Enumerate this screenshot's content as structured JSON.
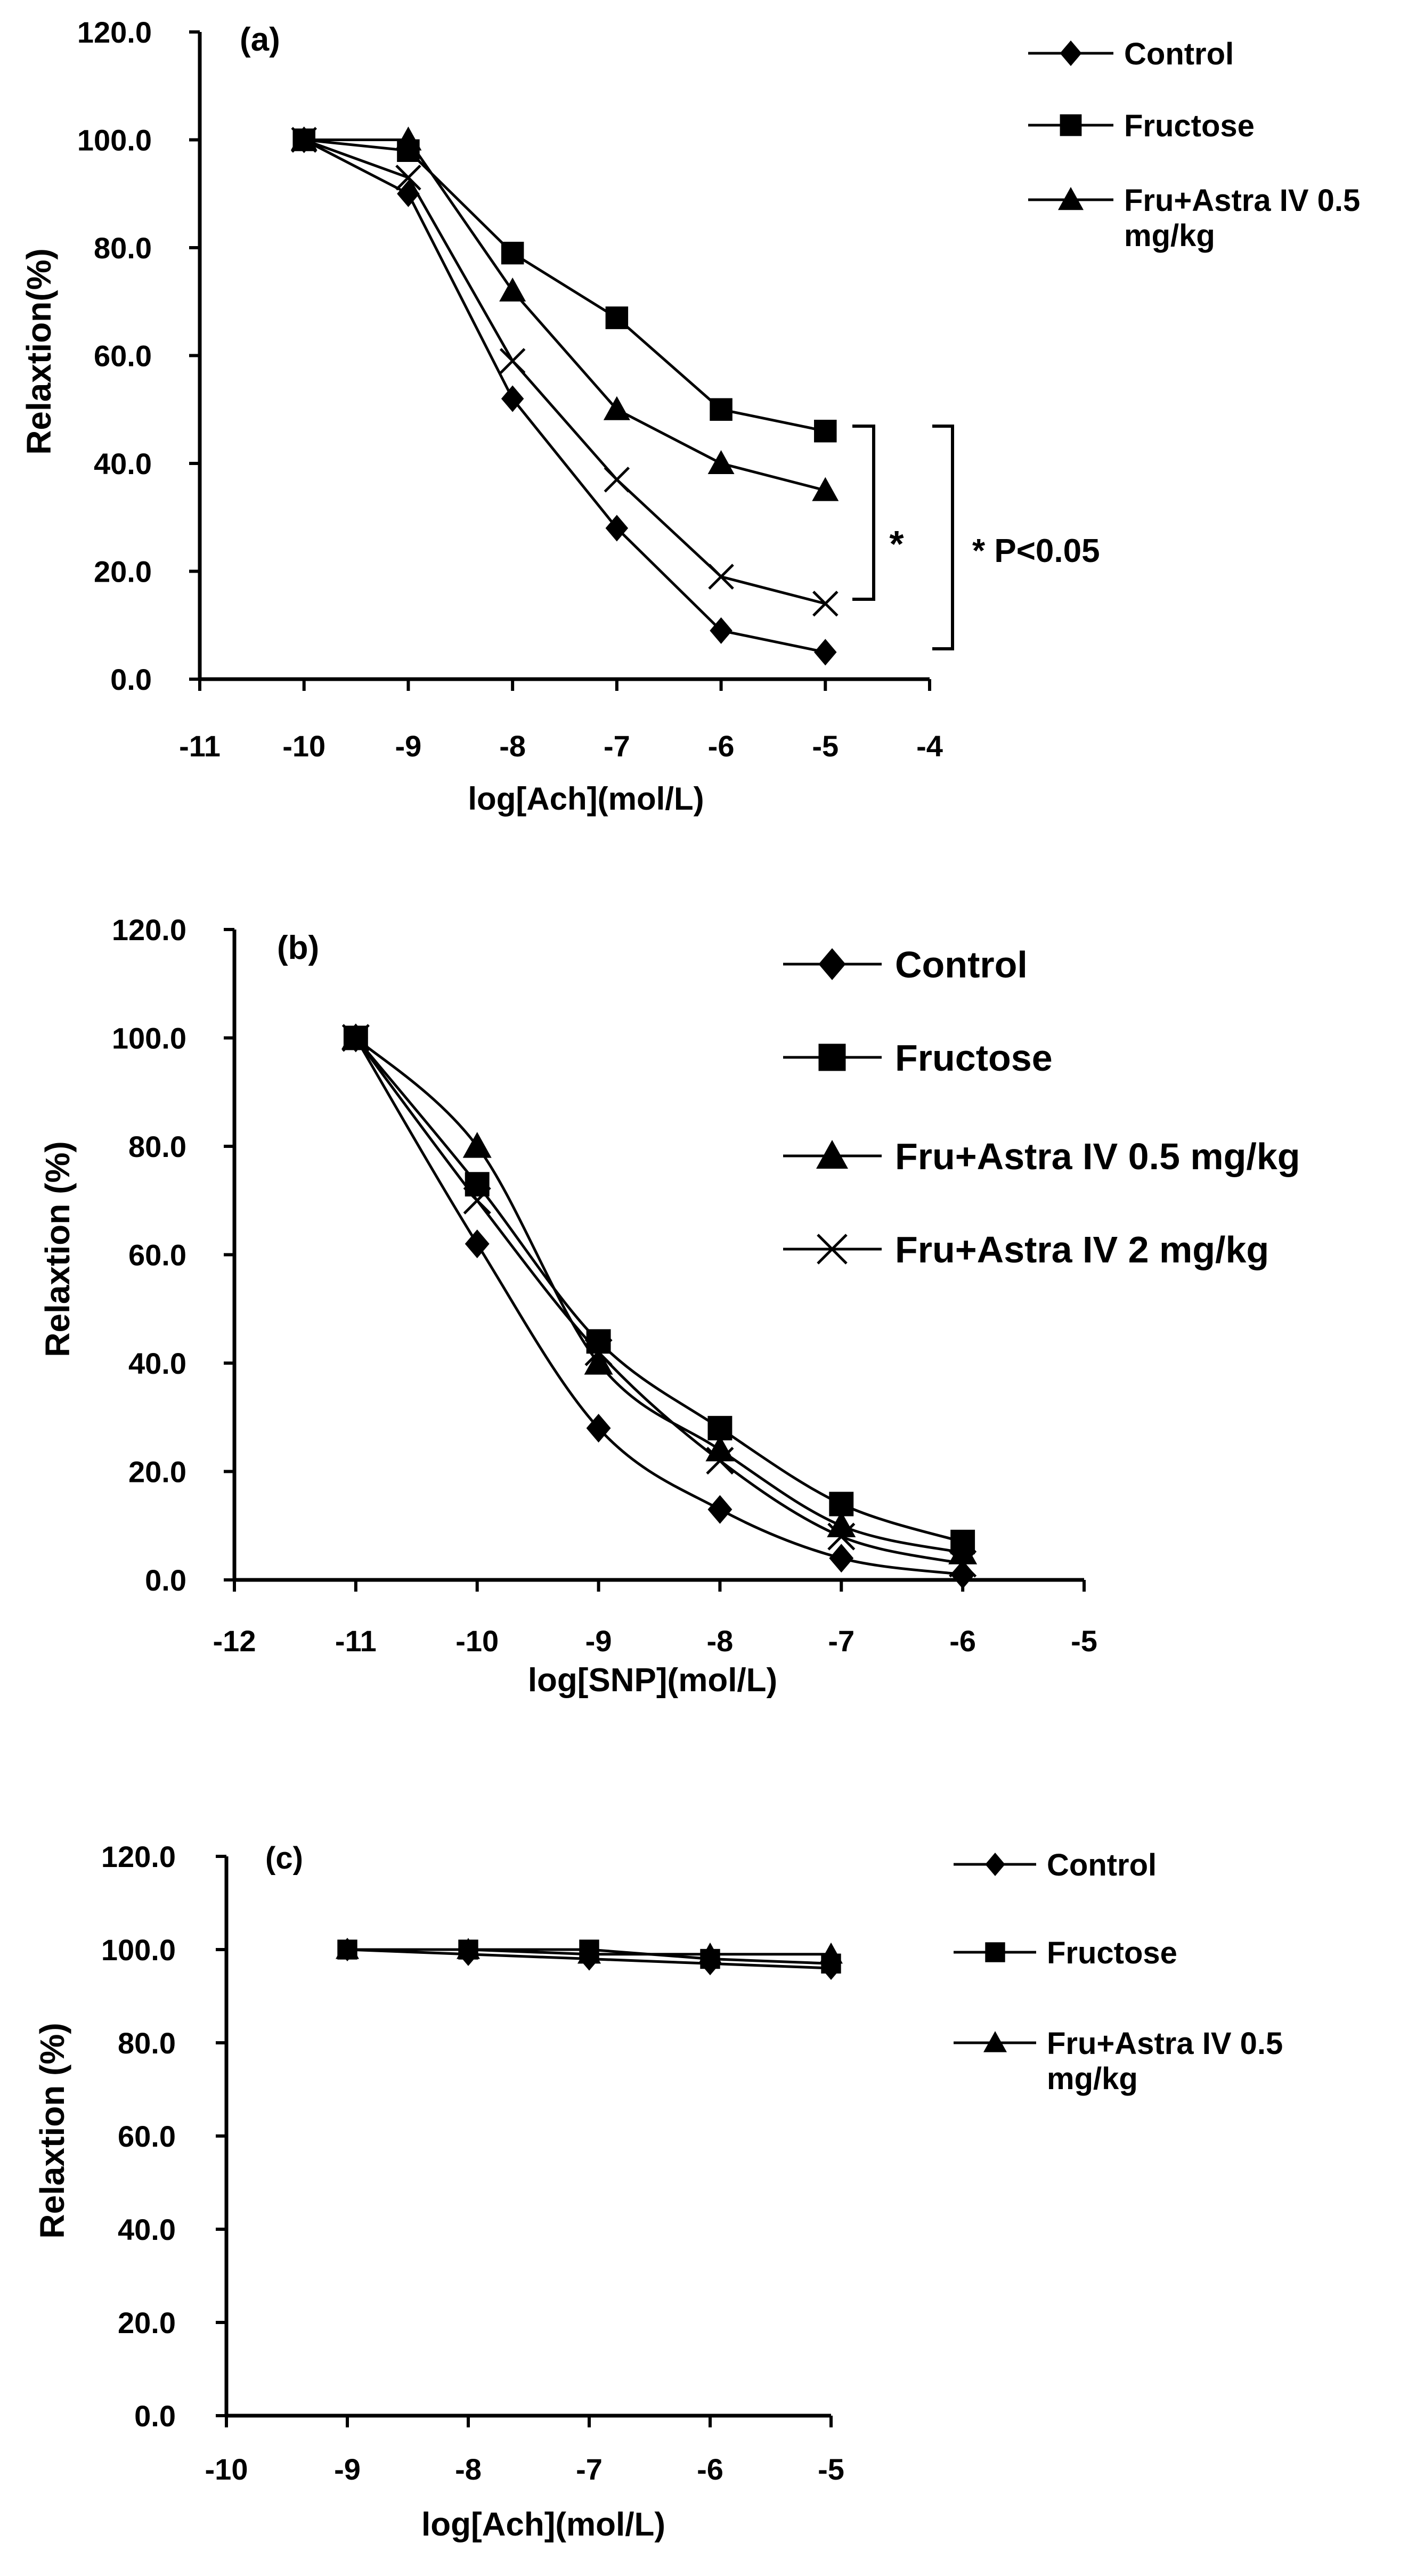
{
  "chart_data": [
    {
      "type": "line",
      "panel_label": "(a)",
      "xlabel": "log[Ach](mol/L)",
      "ylabel": "Relaxtion(%)",
      "xlim": [
        -11,
        -4
      ],
      "ylim": [
        0,
        120
      ],
      "x_ticks": [
        "-11",
        "-10",
        "-9",
        "-8",
        "-7",
        "-6",
        "-5",
        "-4"
      ],
      "y_ticks": [
        "0.0",
        "20.0",
        "40.0",
        "60.0",
        "80.0",
        "100.0",
        "120.0"
      ],
      "grid": false,
      "legend_position": "top-right",
      "series": [
        {
          "name": "Control",
          "marker": "diamond",
          "x": [
            -10,
            -9,
            -8,
            -7,
            -6,
            -5
          ],
          "values": [
            100,
            90,
            52,
            28,
            9,
            5
          ]
        },
        {
          "name": "Fructose",
          "marker": "square",
          "x": [
            -10,
            -9,
            -8,
            -7,
            -6,
            -5
          ],
          "values": [
            100,
            98,
            79,
            67,
            50,
            46
          ]
        },
        {
          "name": "Fru+Astra IV 0.5 mg/kg",
          "legend_lines": [
            "Fru+Astra IV 0.5",
            "mg/kg"
          ],
          "marker": "triangle",
          "x": [
            -10,
            -9,
            -8,
            -7,
            -6,
            -5
          ],
          "values": [
            100,
            100,
            72,
            50,
            40,
            35
          ]
        },
        {
          "marker": "x",
          "x": [
            -10,
            -9,
            -8,
            -7,
            -6,
            -5
          ],
          "values": [
            100,
            93,
            59,
            37,
            19,
            14
          ]
        }
      ],
      "annotations": {
        "inner_star": "*",
        "outer_text": "* P<0.05"
      }
    },
    {
      "type": "line",
      "panel_label": "(b)",
      "xlabel": "log[SNP](mol/L)",
      "ylabel": "Relaxtion (%)",
      "xlim": [
        -12,
        -5
      ],
      "ylim": [
        0,
        120
      ],
      "x_ticks": [
        "-12",
        "-11",
        "-10",
        "-9",
        "-8",
        "-7",
        "-6",
        "-5"
      ],
      "y_ticks": [
        "0.0",
        "20.0",
        "40.0",
        "60.0",
        "80.0",
        "100.0",
        "120.0"
      ],
      "grid": false,
      "legend_position": "top-right",
      "series": [
        {
          "name": "Control",
          "marker": "diamond",
          "x": [
            -11,
            -10,
            -9,
            -8,
            -7,
            -6
          ],
          "values": [
            100,
            62,
            28,
            13,
            4,
            1
          ]
        },
        {
          "name": "Fructose",
          "marker": "square",
          "x": [
            -11,
            -10,
            -9,
            -8,
            -7,
            -6
          ],
          "values": [
            100,
            73,
            44,
            28,
            14,
            7
          ]
        },
        {
          "name": "Fru+Astra IV 0.5 mg/kg",
          "marker": "triangle",
          "x": [
            -11,
            -10,
            -9,
            -8,
            -7,
            -6
          ],
          "values": [
            100,
            80,
            40,
            24,
            10,
            5
          ]
        },
        {
          "name": "Fru+Astra IV 2 mg/kg",
          "marker": "x",
          "x": [
            -11,
            -10,
            -9,
            -8,
            -7,
            -6
          ],
          "values": [
            100,
            70,
            42,
            22,
            8,
            3
          ]
        }
      ]
    },
    {
      "type": "line",
      "panel_label": "(c)",
      "xlabel": "log[Ach](mol/L)",
      "ylabel": "Relaxtion (%)",
      "xlim": [
        -10,
        -5
      ],
      "ylim": [
        0,
        120
      ],
      "x_ticks": [
        "-10",
        "-9",
        "-8",
        "-7",
        "-6",
        "-5"
      ],
      "y_ticks": [
        "0.0",
        "20.0",
        "40.0",
        "60.0",
        "80.0",
        "100.0",
        "120.0"
      ],
      "grid": false,
      "legend_position": "top-right",
      "series": [
        {
          "name": "Control",
          "marker": "diamond",
          "x": [
            -9,
            -8,
            -7,
            -6,
            -5
          ],
          "values": [
            100,
            99,
            98,
            97,
            96
          ]
        },
        {
          "name": "Fructose",
          "marker": "square",
          "x": [
            -9,
            -8,
            -7,
            -6,
            -5
          ],
          "values": [
            100,
            100,
            100,
            98,
            97
          ]
        },
        {
          "name": "Fru+Astra IV 0.5 mg/kg",
          "legend_lines": [
            "Fru+Astra IV 0.5",
            "mg/kg"
          ],
          "marker": "triangle",
          "x": [
            -9,
            -8,
            -7,
            -6,
            -5
          ],
          "values": [
            100,
            100,
            99,
            99,
            99
          ]
        }
      ]
    }
  ]
}
